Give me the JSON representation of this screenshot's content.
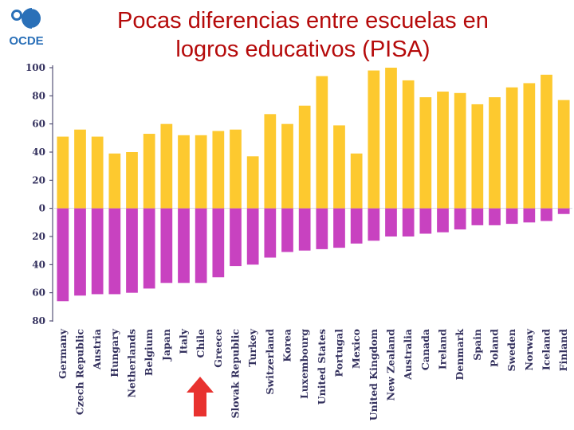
{
  "header": {
    "logo_text": "OCDE",
    "title_line1": "Pocas diferencias entre escuelas en",
    "title_line2": "logros educativos (PISA)"
  },
  "colors": {
    "positive": "#fdc92f",
    "negative": "#c842c0",
    "axis": "#34315e",
    "title": "#b50a0a",
    "arrow": "#e8322f",
    "logo": "#2a70b8"
  },
  "annotation": {
    "arrow_target": "Chile"
  },
  "chart_data": {
    "type": "bar",
    "title": "Pocas diferencias entre escuelas en logros educativos (PISA)",
    "xlabel": "",
    "ylabel": "",
    "ylim": [
      -80,
      100
    ],
    "ytick_values": [
      100,
      80,
      60,
      40,
      20,
      0,
      -20,
      -40,
      -60,
      -80
    ],
    "ytick_labels": [
      "100",
      "80",
      "60",
      "40",
      "20",
      "0",
      "20",
      "40",
      "60",
      "80"
    ],
    "grid": false,
    "categories": [
      "Germany",
      "Czech Republic",
      "Austria",
      "Hungary",
      "Netherlands",
      "Belgium",
      "Japan",
      "Italy",
      "Chile",
      "Greece",
      "Slovak Republic",
      "Turkey",
      "Switzerland",
      "Korea",
      "Luxembourg",
      "United States",
      "Portugal",
      "Mexico",
      "United Kingdom",
      "New Zealand",
      "Australia",
      "Canada",
      "Ireland",
      "Denmark",
      "Spain",
      "Poland",
      "Sweden",
      "Norway",
      "Iceland",
      "Finland"
    ],
    "series": [
      {
        "values": [
          51,
          56,
          51,
          39,
          40,
          53,
          60,
          52,
          52,
          55,
          56,
          37,
          67,
          60,
          73,
          94,
          59,
          39,
          98,
          100,
          91,
          79,
          83,
          82,
          74,
          79,
          86,
          89,
          95,
          77
        ]
      },
      {
        "values": [
          -66,
          -62,
          -61,
          -61,
          -60,
          -57,
          -53,
          -53,
          -53,
          -49,
          -41,
          -40,
          -35,
          -31,
          -30,
          -29,
          -28,
          -25,
          -23,
          -20,
          -20,
          -18,
          -17,
          -15,
          -12,
          -12,
          -11,
          -10,
          -9,
          -4
        ]
      }
    ]
  }
}
